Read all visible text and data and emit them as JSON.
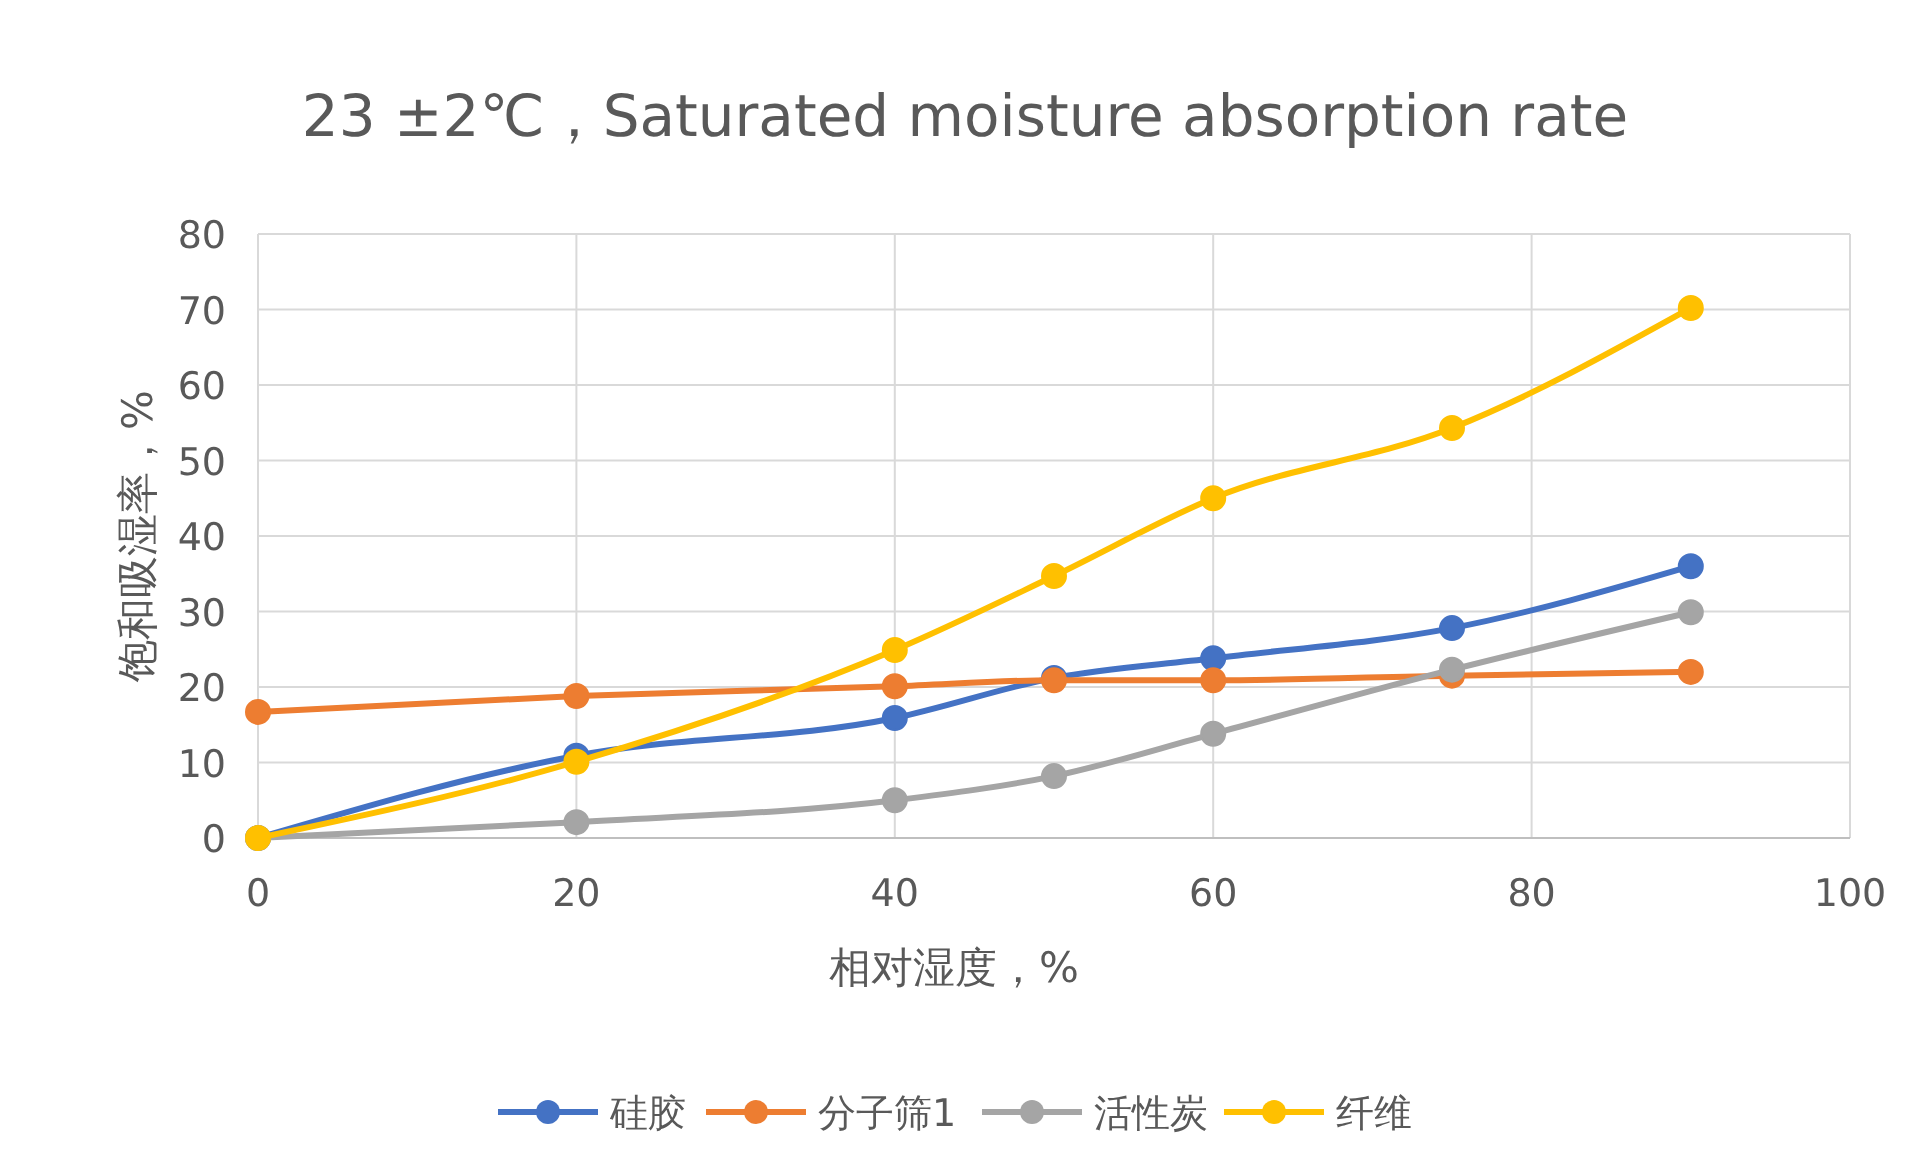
{
  "chart_data": {
    "type": "line",
    "title": "23 ±2℃，Saturated moisture absorption rate",
    "xlabel": "相对湿度，%",
    "ylabel": "饱和吸湿率，%",
    "x": [
      0,
      20,
      40,
      50,
      60,
      75,
      90
    ],
    "series": [
      {
        "name": "硅胶",
        "color": "#4472c4",
        "values": [
          0,
          10.9,
          15.9,
          21.2,
          23.8,
          27.8,
          36.0
        ]
      },
      {
        "name": "分子筛1",
        "color": "#ed7d31",
        "values": [
          16.7,
          18.8,
          20.1,
          20.9,
          20.9,
          21.5,
          22.0
        ]
      },
      {
        "name": "活性炭",
        "color": "#a5a5a5",
        "values": [
          0,
          2.1,
          5.0,
          8.2,
          13.8,
          22.3,
          29.9
        ]
      },
      {
        "name": "纤维",
        "color": "#ffc000",
        "values": [
          0,
          10.1,
          24.9,
          34.7,
          45.0,
          54.3,
          70.2
        ]
      }
    ],
    "xlim": [
      0,
      100
    ],
    "xticks": [
      0,
      20,
      40,
      60,
      80,
      100
    ],
    "ylim": [
      0,
      80
    ],
    "yticks": [
      0,
      10,
      20,
      30,
      40,
      50,
      60,
      70,
      80
    ],
    "grid": true,
    "legend": "bottom",
    "marker": "circle",
    "line_style": "solid"
  }
}
